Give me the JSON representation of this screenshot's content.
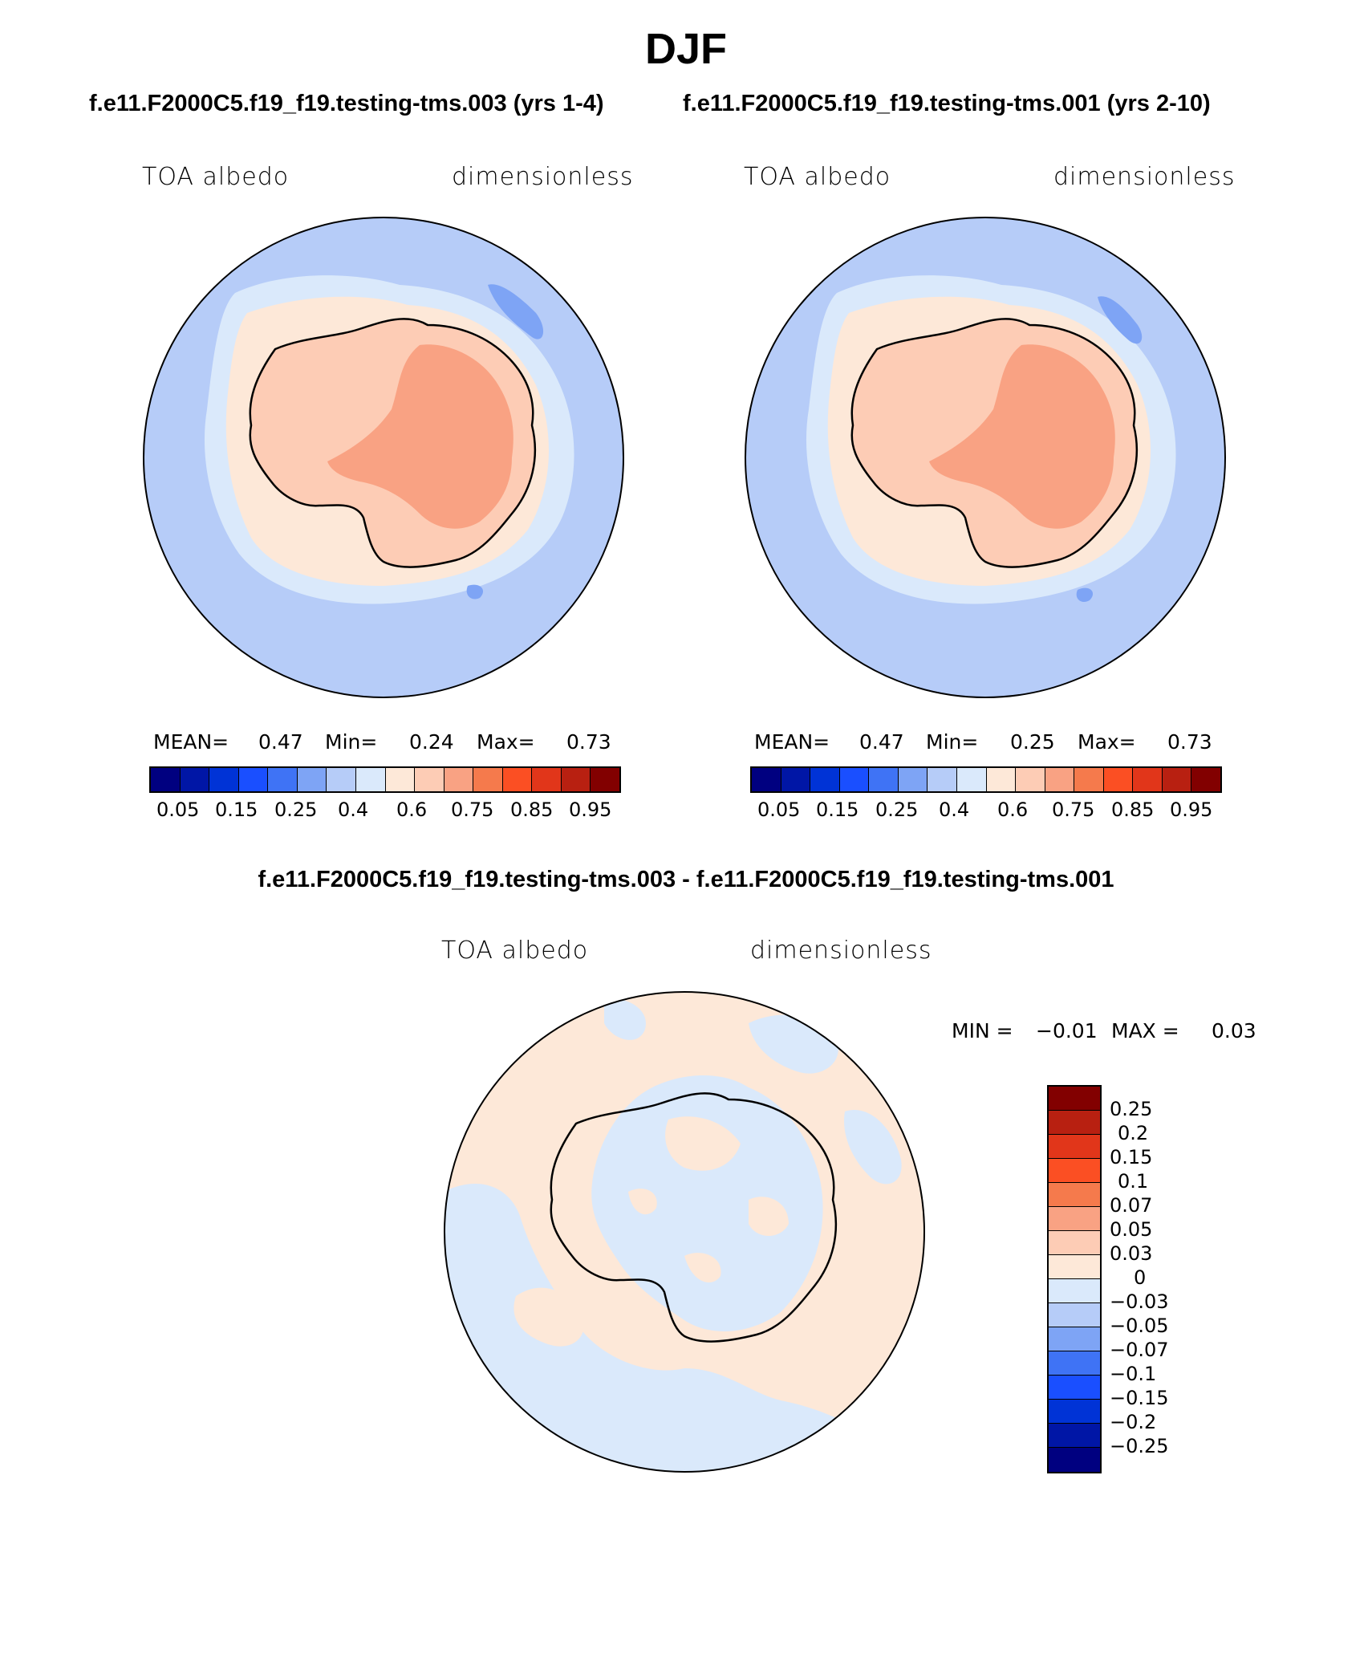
{
  "title": "DJF",
  "case_left_title": "f.e11.F2000C5.f19_f19.testing-tms.003 (yrs 1-4)",
  "case_right_title": "f.e11.F2000C5.f19_f19.testing-tms.001 (yrs 2-10)",
  "panels": [
    {
      "variable": "TOA albedo",
      "units": "dimensionless",
      "stats": {
        "mean_label": "MEAN=",
        "mean": "0.47",
        "min_label": "Min=",
        "min": "0.24",
        "max_label": "Max=",
        "max": "0.73"
      }
    },
    {
      "variable": "TOA albedo",
      "units": "dimensionless",
      "stats": {
        "mean_label": "MEAN=",
        "mean": "0.47",
        "min_label": "Min=",
        "min": "0.25",
        "max_label": "Max=",
        "max": "0.73"
      }
    }
  ],
  "colorbar": {
    "colors": [
      "#000080",
      "#0016a6",
      "#0033d6",
      "#1a4fff",
      "#3f73f5",
      "#7ea4f5",
      "#b6ccf8",
      "#dae9fb",
      "#fde8d8",
      "#fdccb5",
      "#f9a283",
      "#f57a4c",
      "#fb4f23",
      "#e1361a",
      "#b82011",
      "#820000"
    ],
    "ticks": [
      "0.05",
      "0.15",
      "0.25",
      "0.4",
      "0.6",
      "0.75",
      "0.85",
      "0.95"
    ]
  },
  "diff": {
    "title": "f.e11.F2000C5.f19_f19.testing-tms.003 - f.e11.F2000C5.f19_f19.testing-tms.001",
    "variable": "TOA albedo",
    "units": "dimensionless",
    "stats": {
      "min_label": "MIN =",
      "min": "−0.01",
      "max_label": "MAX =",
      "max": "0.03"
    },
    "colorbar_colors": [
      "#820000",
      "#b82011",
      "#e1361a",
      "#fb4f23",
      "#f57a4c",
      "#f9a283",
      "#fdccb5",
      "#fde8d8",
      "#dae9fb",
      "#b6ccf8",
      "#7ea4f5",
      "#3f73f5",
      "#1a4fff",
      "#0033d6",
      "#0016a6",
      "#000080"
    ],
    "ticks": [
      "0.25",
      "0.2",
      "0.15",
      "0.1",
      "0.07",
      "0.05",
      "0.03",
      "0",
      "−0.03",
      "−0.05",
      "−0.07",
      "−0.1",
      "−0.15",
      "−0.2",
      "−0.25"
    ]
  },
  "map_colors": {
    "ocean": "#b6ccf8",
    "ice_edge": "#dae9fb",
    "pale": "#fde8d8",
    "land": "#fdccb5",
    "plateau": "#f9a283",
    "dark_blue_patch": "#7ea4f5",
    "diff_pos": "#fde8d8",
    "diff_neg": "#dae9fb"
  }
}
